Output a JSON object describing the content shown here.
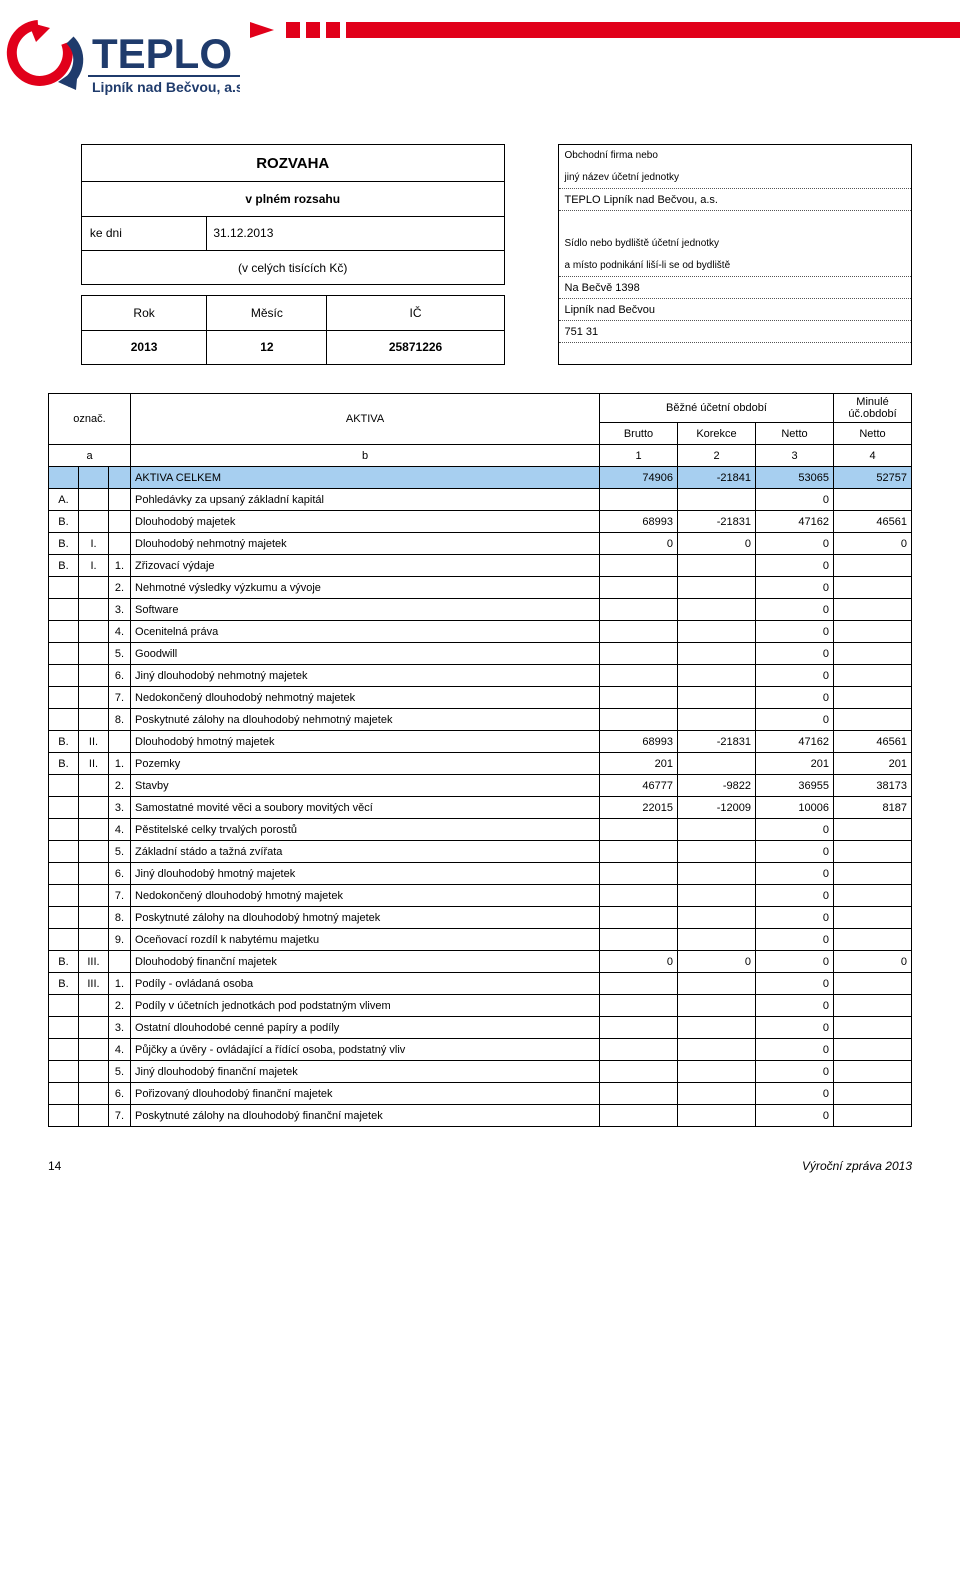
{
  "company": {
    "logo_main": "TEPLO",
    "logo_sub": "Lipník nad Bečvou, a.s.",
    "logo_red": "#e1001a",
    "logo_blue": "#1f3b6c"
  },
  "rozvaha": {
    "title": "ROZVAHA",
    "subtitle": "v plném rozsahu",
    "ke_dni_lbl": "ke dni",
    "ke_dni": "31.12.2013",
    "units": "(v celých tisících Kč)",
    "rok_lbl": "Rok",
    "mesic_lbl": "Měsíc",
    "ic_lbl": "IČ",
    "rok": "2013",
    "mesic": "12",
    "ic": "25871226"
  },
  "info": {
    "cap1": "Obchodní firma nebo",
    "cap2": "jiný název účetní jednotky",
    "name": "TEPLO Lipník nad Bečvou, a.s.",
    "cap3": "Sídlo nebo bydliště účetní jednotky",
    "cap4": "a místo podnikání liší-li se od bydliště",
    "addr1": "Na Bečvě 1398",
    "addr2": "Lipník nad Bečvou",
    "addr3": "751 31"
  },
  "colhdr": {
    "oznac": "označ.",
    "a": "a",
    "aktiva": "AKTIVA",
    "b": "b",
    "bezne": "Běžné účetní období",
    "brutto": "Brutto",
    "korekce": "Korekce",
    "netto": "Netto",
    "c1": "1",
    "c2": "2",
    "c3": "3",
    "minule": "Minulé úč.období",
    "netto2": "Netto",
    "c4": "4"
  },
  "rows": [
    {
      "a": "",
      "b": "",
      "c": "",
      "label": "AKTIVA CELKEM",
      "v": [
        "74906",
        "-21841",
        "53065",
        "52757"
      ],
      "hl": true
    },
    {
      "a": "A.",
      "b": "",
      "c": "",
      "label": "Pohledávky za upsaný základní kapitál",
      "v": [
        "",
        "",
        "0",
        ""
      ]
    },
    {
      "a": "B.",
      "b": "",
      "c": "",
      "label": "Dlouhodobý majetek",
      "v": [
        "68993",
        "-21831",
        "47162",
        "46561"
      ]
    },
    {
      "a": "B.",
      "b": "I.",
      "c": "",
      "label": "Dlouhodobý nehmotný majetek",
      "v": [
        "0",
        "0",
        "0",
        "0"
      ]
    },
    {
      "a": "B.",
      "b": "I.",
      "c": "1.",
      "label": "Zřizovací výdaje",
      "v": [
        "",
        "",
        "0",
        ""
      ]
    },
    {
      "a": "",
      "b": "",
      "c": "2.",
      "label": "Nehmotné výsledky výzkumu a vývoje",
      "v": [
        "",
        "",
        "0",
        ""
      ]
    },
    {
      "a": "",
      "b": "",
      "c": "3.",
      "label": "Software",
      "v": [
        "",
        "",
        "0",
        ""
      ]
    },
    {
      "a": "",
      "b": "",
      "c": "4.",
      "label": "Ocenitelná práva",
      "v": [
        "",
        "",
        "0",
        ""
      ]
    },
    {
      "a": "",
      "b": "",
      "c": "5.",
      "label": "Goodwill",
      "v": [
        "",
        "",
        "0",
        ""
      ]
    },
    {
      "a": "",
      "b": "",
      "c": "6.",
      "label": "Jiný dlouhodobý nehmotný majetek",
      "v": [
        "",
        "",
        "0",
        ""
      ]
    },
    {
      "a": "",
      "b": "",
      "c": "7.",
      "label": "Nedokončený dlouhodobý nehmotný majetek",
      "v": [
        "",
        "",
        "0",
        ""
      ]
    },
    {
      "a": "",
      "b": "",
      "c": "8.",
      "label": "Poskytnuté zálohy na dlouhodobý nehmotný majetek",
      "v": [
        "",
        "",
        "0",
        ""
      ]
    },
    {
      "a": "B.",
      "b": "II.",
      "c": "",
      "label": "Dlouhodobý hmotný majetek",
      "v": [
        "68993",
        "-21831",
        "47162",
        "46561"
      ]
    },
    {
      "a": "B.",
      "b": "II.",
      "c": "1.",
      "label": "Pozemky",
      "v": [
        "201",
        "",
        "201",
        "201"
      ]
    },
    {
      "a": "",
      "b": "",
      "c": "2.",
      "label": "Stavby",
      "v": [
        "46777",
        "-9822",
        "36955",
        "38173"
      ]
    },
    {
      "a": "",
      "b": "",
      "c": "3.",
      "label": "Samostatné movité věci a soubory movitých věcí",
      "v": [
        "22015",
        "-12009",
        "10006",
        "8187"
      ]
    },
    {
      "a": "",
      "b": "",
      "c": "4.",
      "label": "Pěstitelské celky trvalých porostů",
      "v": [
        "",
        "",
        "0",
        ""
      ]
    },
    {
      "a": "",
      "b": "",
      "c": "5.",
      "label": "Základní stádo a tažná zvířata",
      "v": [
        "",
        "",
        "0",
        ""
      ]
    },
    {
      "a": "",
      "b": "",
      "c": "6.",
      "label": "Jiný dlouhodobý hmotný majetek",
      "v": [
        "",
        "",
        "0",
        ""
      ]
    },
    {
      "a": "",
      "b": "",
      "c": "7.",
      "label": "Nedokončený dlouhodobý hmotný majetek",
      "v": [
        "",
        "",
        "0",
        ""
      ]
    },
    {
      "a": "",
      "b": "",
      "c": "8.",
      "label": "Poskytnuté zálohy na dlouhodobý hmotný majetek",
      "v": [
        "",
        "",
        "0",
        ""
      ]
    },
    {
      "a": "",
      "b": "",
      "c": "9.",
      "label": "Oceňovací rozdíl k nabytému majetku",
      "v": [
        "",
        "",
        "0",
        ""
      ]
    },
    {
      "a": "B.",
      "b": "III.",
      "c": "",
      "label": "Dlouhodobý finanční majetek",
      "v": [
        "0",
        "0",
        "0",
        "0"
      ]
    },
    {
      "a": "B.",
      "b": "III.",
      "c": "1.",
      "label": "Podíly - ovládaná osoba",
      "v": [
        "",
        "",
        "0",
        ""
      ]
    },
    {
      "a": "",
      "b": "",
      "c": "2.",
      "label": "Podíly v účetních jednotkách pod podstatným vlivem",
      "v": [
        "",
        "",
        "0",
        ""
      ]
    },
    {
      "a": "",
      "b": "",
      "c": "3.",
      "label": "Ostatní dlouhodobé cenné papíry a podíly",
      "v": [
        "",
        "",
        "0",
        ""
      ]
    },
    {
      "a": "",
      "b": "",
      "c": "4.",
      "label": "Půjčky a úvěry - ovládající a řídící osoba, podstatný vliv",
      "v": [
        "",
        "",
        "0",
        ""
      ]
    },
    {
      "a": "",
      "b": "",
      "c": "5.",
      "label": "Jiný dlouhodobý finanční majetek",
      "v": [
        "",
        "",
        "0",
        ""
      ]
    },
    {
      "a": "",
      "b": "",
      "c": "6.",
      "label": "Pořizovaný dlouhodobý finanční majetek",
      "v": [
        "",
        "",
        "0",
        ""
      ]
    },
    {
      "a": "",
      "b": "",
      "c": "7.",
      "label": "Poskytnuté zálohy na dlouhodobý finanční majetek",
      "v": [
        "",
        "",
        "0",
        ""
      ]
    }
  ],
  "footer": {
    "page": "14",
    "right": "Výroční zpráva 2013"
  }
}
